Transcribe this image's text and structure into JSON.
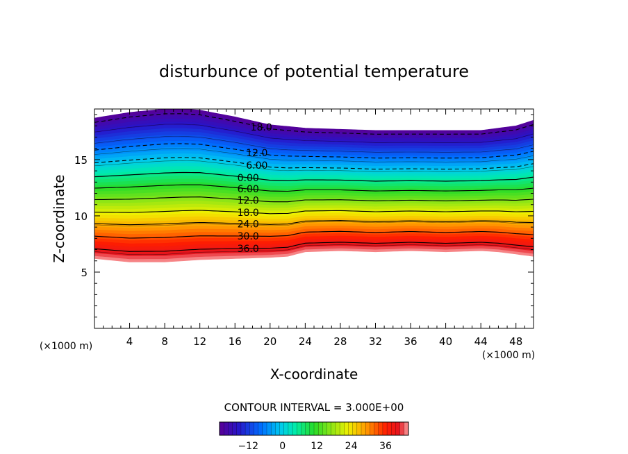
{
  "chart_data": {
    "type": "contour",
    "title": "disturbunce of potential temperature",
    "xlabel": "X-coordinate",
    "ylabel": "Z-coordinate",
    "x_unit": "(×1000 m)",
    "y_unit": "(×1000 m)",
    "xlim": [
      0,
      50
    ],
    "ylim": [
      0,
      19.5
    ],
    "x_ticks": [
      4,
      8,
      12,
      16,
      20,
      24,
      28,
      32,
      36,
      40,
      44,
      48
    ],
    "x_tick_labels": [
      "4",
      "8",
      "12",
      "16",
      "20",
      "24",
      "28",
      "32",
      "36",
      "40",
      "44",
      "48"
    ],
    "y_ticks": [
      5,
      10,
      15
    ],
    "y_tick_labels": [
      "5",
      "10",
      "15"
    ],
    "contour_interval_text": "CONTOUR INTERVAL = 3.000E+00",
    "colorbar": {
      "min": -22,
      "max": 44,
      "tick_values": [
        -12,
        0,
        12,
        24,
        36
      ],
      "tick_labels": [
        "−12",
        "0",
        "12",
        "24",
        "36"
      ]
    },
    "contour_labels": [
      {
        "text": "18.0",
        "x": 19,
        "z": 17.9,
        "dashed": true
      },
      {
        "text": "12.0",
        "x": 18.5,
        "z": 15.6,
        "dashed": true
      },
      {
        "text": "6.00",
        "x": 18.5,
        "z": 14.5,
        "dashed": true
      },
      {
        "text": "0.00",
        "x": 17.5,
        "z": 13.4,
        "dashed": false
      },
      {
        "text": "6.00",
        "x": 17.5,
        "z": 12.4,
        "dashed": false
      },
      {
        "text": "12.0",
        "x": 17.5,
        "z": 11.4,
        "dashed": false
      },
      {
        "text": "18.0",
        "x": 17.5,
        "z": 10.3,
        "dashed": false
      },
      {
        "text": "24.0",
        "x": 17.5,
        "z": 9.3,
        "dashed": false
      },
      {
        "text": "30.0",
        "x": 17.5,
        "z": 8.2,
        "dashed": false
      },
      {
        "text": "36.0",
        "x": 17.5,
        "z": 7.1,
        "dashed": false
      }
    ],
    "upper_boundary": {
      "x": [
        0,
        4,
        8,
        10,
        12,
        16,
        20,
        24,
        28,
        32,
        36,
        40,
        44,
        48,
        50
      ],
      "z": [
        18.7,
        19.2,
        19.5,
        19.5,
        19.4,
        18.8,
        18.1,
        17.8,
        17.7,
        17.6,
        17.6,
        17.6,
        17.6,
        18.0,
        18.5
      ]
    },
    "lower_boundary": {
      "x": [
        0,
        4,
        8,
        12,
        16,
        20,
        22,
        24,
        28,
        32,
        36,
        40,
        44,
        46,
        48,
        50
      ],
      "z": [
        6.2,
        5.9,
        5.9,
        6.1,
        6.2,
        6.3,
        6.4,
        6.8,
        6.9,
        6.8,
        6.9,
        6.8,
        6.9,
        6.8,
        6.6,
        6.4
      ]
    },
    "bottom_value": 44,
    "top_value": -22
  }
}
